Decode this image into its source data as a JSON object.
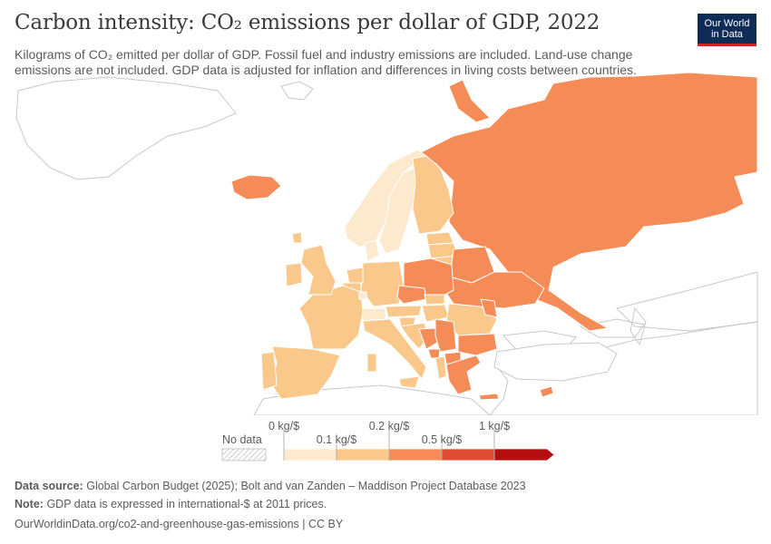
{
  "header": {
    "title": "Carbon intensity: CO₂ emissions per dollar of GDP, 2022",
    "subtitle": "Kilograms of CO₂ emitted per dollar of GDP. Fossil fuel and industry emissions are included. Land-use change emissions are not included. GDP data is adjusted for inflation and differences in living costs between countries.",
    "logo_line1": "Our World",
    "logo_line2": "in Data"
  },
  "legend": {
    "no_data_label": "No data",
    "upper_labels": [
      "0 kg/$",
      "0.2 kg/$",
      "1 kg/$"
    ],
    "lower_labels": [
      "0.1 kg/$",
      "0.5 kg/$"
    ],
    "bins": [
      {
        "range": "0–0.1",
        "color": "#fde9ce"
      },
      {
        "range": "0.1–0.2",
        "color": "#f9c88a"
      },
      {
        "range": "0.2–0.5",
        "color": "#f58b57"
      },
      {
        "range": "0.5–1",
        "color": "#dd4b33"
      },
      {
        "range": ">1",
        "color": "#b40e0e"
      }
    ]
  },
  "colors": {
    "no_data": "#ffffff",
    "border": "#a9a9a9",
    "light": "#fde9ce",
    "medium": "#f9c88a",
    "orange": "#f58b57",
    "dark": "#e56a42"
  },
  "footer": {
    "source_label": "Data source:",
    "source_text": "Global Carbon Budget (2025); Bolt and van Zanden – Maddison Project Database 2023",
    "note_label": "Note:",
    "note_text": "GDP data is expressed in international-$ at 2011 prices.",
    "url": "OurWorldinData.org/co2-and-greenhouse-gas-emissions | CC BY"
  }
}
